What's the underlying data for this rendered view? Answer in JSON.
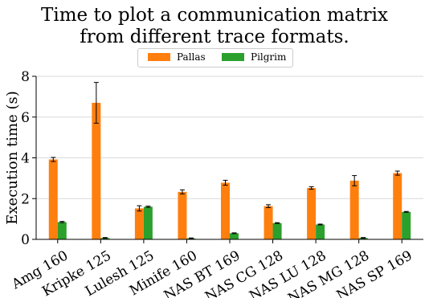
{
  "chart_data": {
    "type": "bar",
    "title_line1": "Time to plot a communication matrix",
    "title_line2": "from different trace formats.",
    "xlabel": "",
    "ylabel": "Execution time (s)",
    "ylim": [
      0,
      8
    ],
    "yticks": [
      0,
      2,
      4,
      6,
      8
    ],
    "grid": "horizontal",
    "legend_placement": "top-center",
    "categories": [
      "Amg 160",
      "Kripke 125",
      "Lulesh 125",
      "Minife 160",
      "NAS BT 169",
      "NAS CG 128",
      "NAS LU 128",
      "NAS MG 128",
      "NAS SP 169"
    ],
    "series": [
      {
        "name": "Pallas",
        "color": "#ff7f0e",
        "values": [
          3.92,
          6.7,
          1.52,
          2.33,
          2.78,
          1.63,
          2.52,
          2.88,
          3.25
        ],
        "errors": [
          0.1,
          1.0,
          0.13,
          0.1,
          0.12,
          0.07,
          0.06,
          0.25,
          0.1
        ]
      },
      {
        "name": "Pilgrim",
        "color": "#2ca02c",
        "values": [
          0.85,
          0.07,
          1.6,
          0.05,
          0.3,
          0.8,
          0.73,
          0.07,
          1.35
        ],
        "errors": [
          0.03,
          0.02,
          0.03,
          0.02,
          0.02,
          0.02,
          0.02,
          0.02,
          0.02
        ]
      }
    ]
  }
}
